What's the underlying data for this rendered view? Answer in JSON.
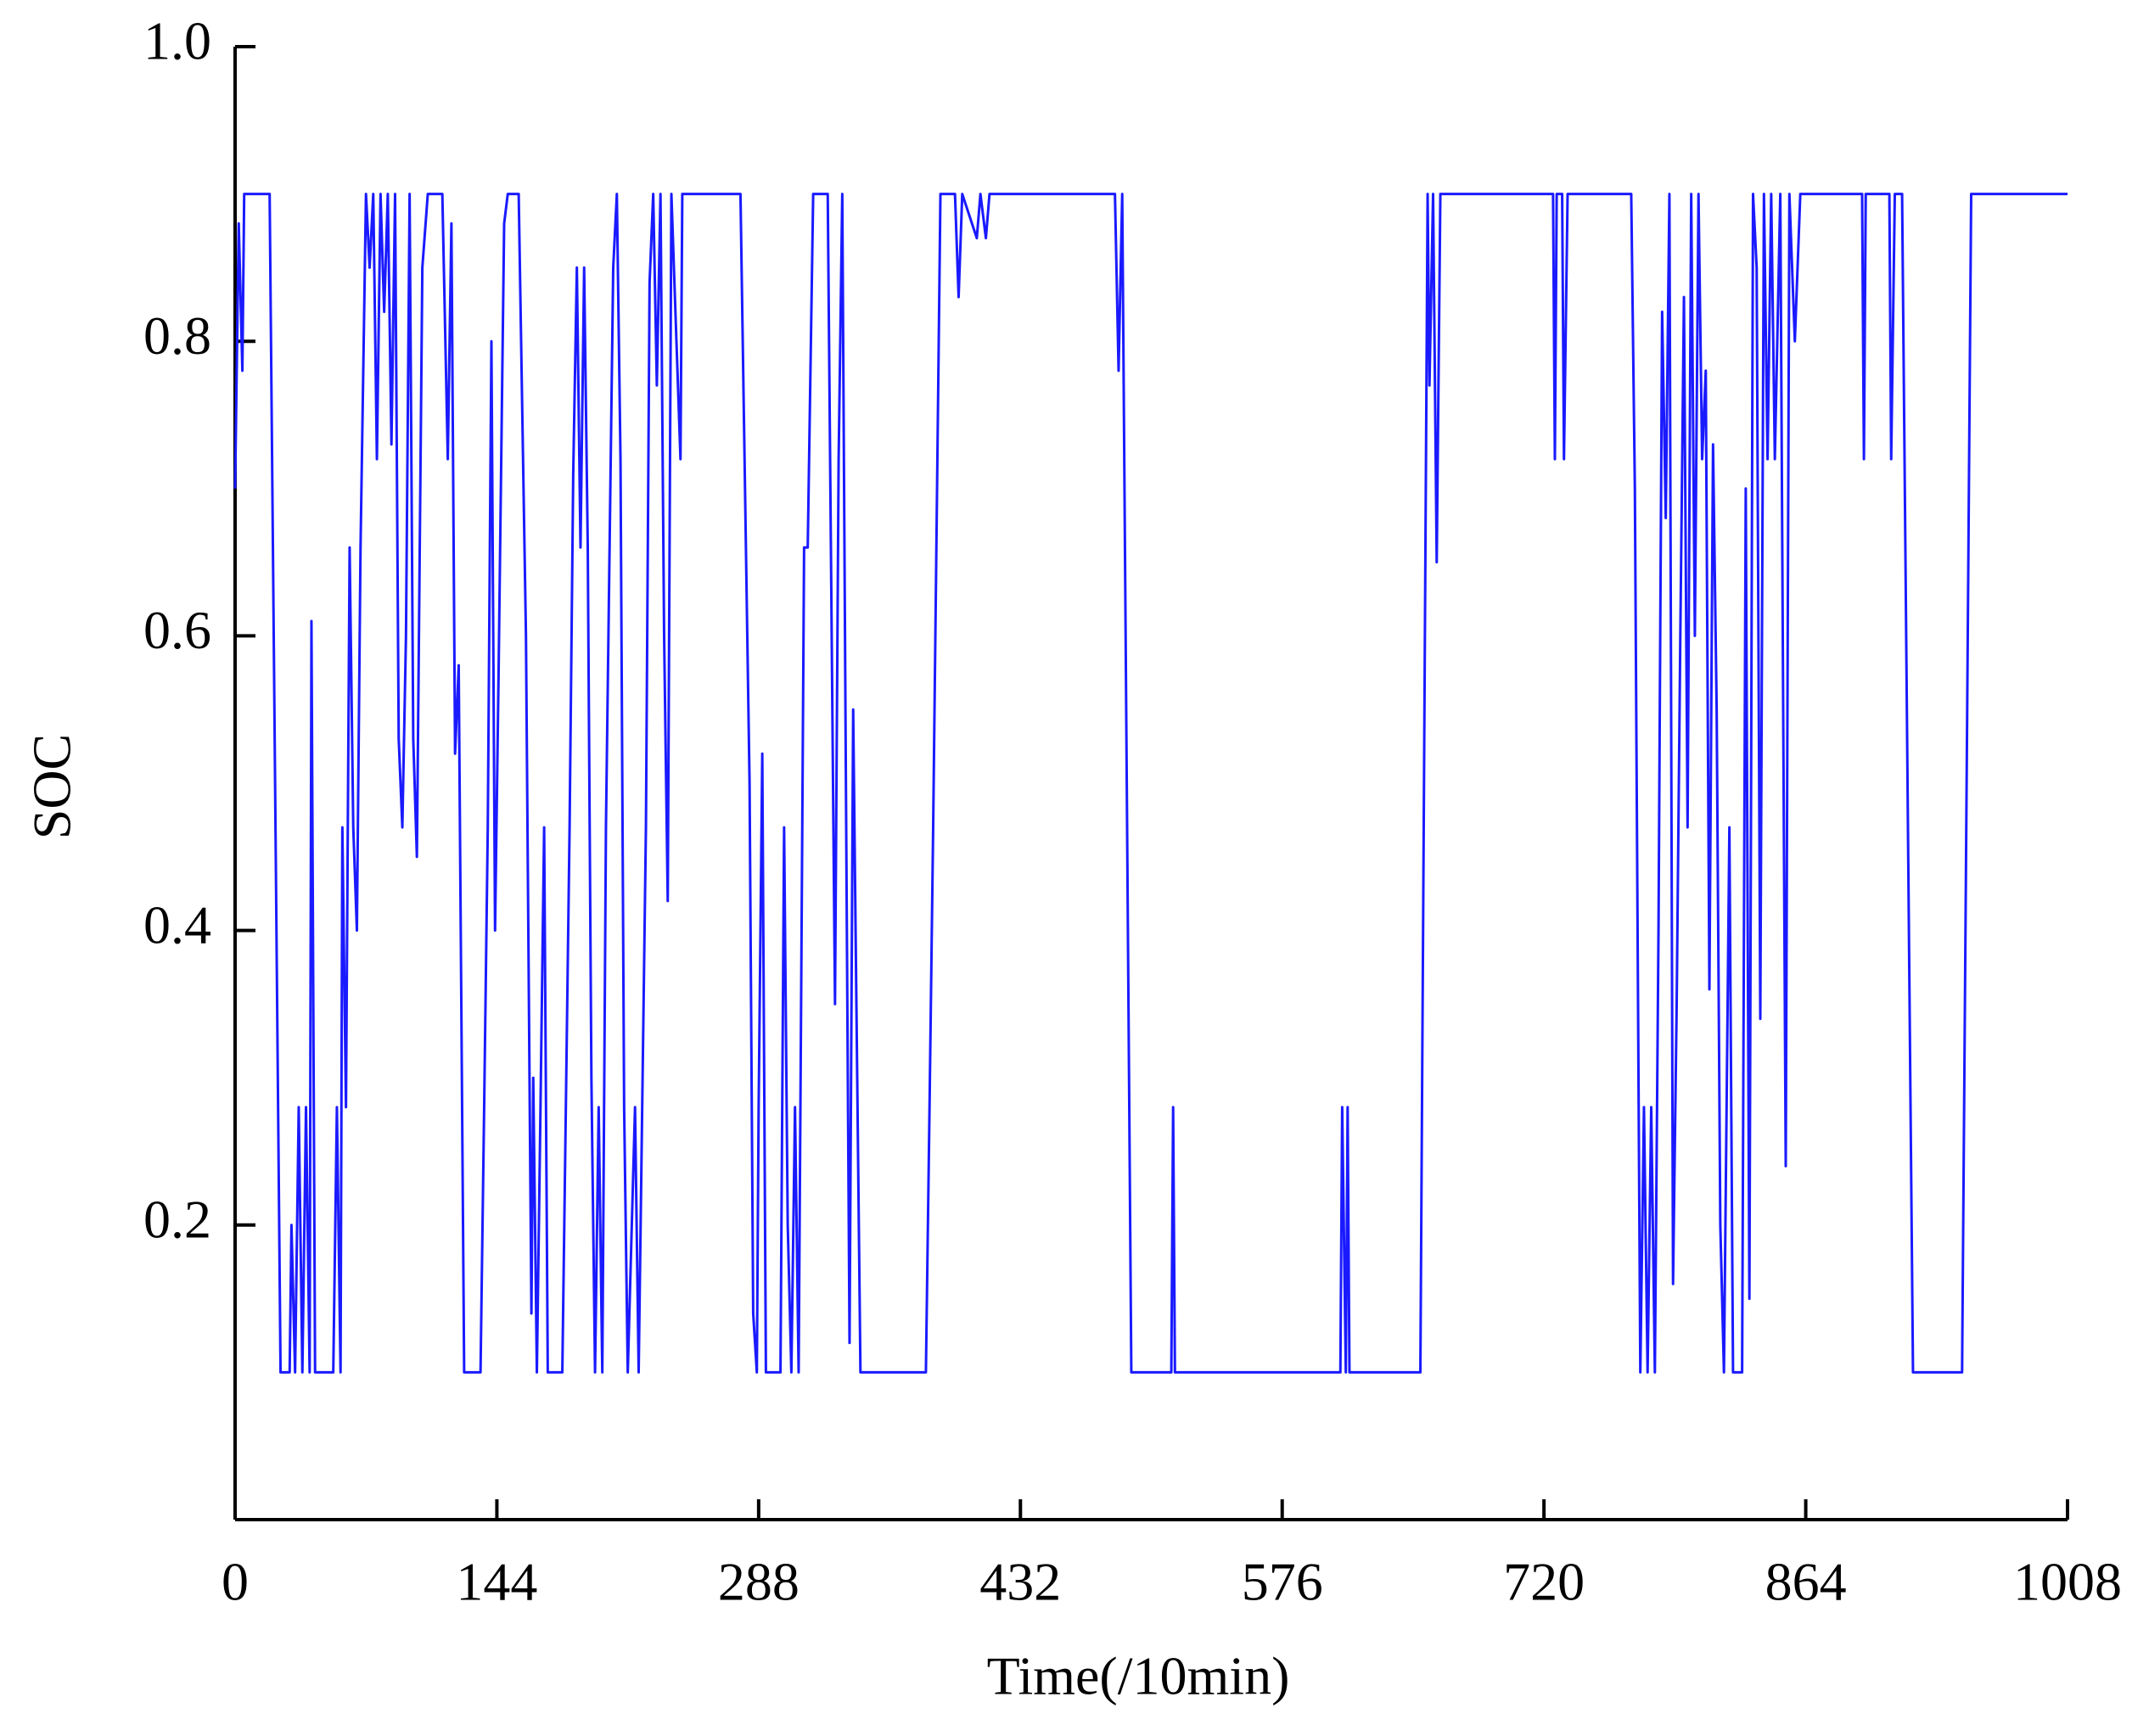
{
  "chart_data": {
    "type": "line",
    "xlabel": "Time(/10min)",
    "ylabel": "SOC",
    "color": "#1a1aff",
    "xlim": [
      0,
      1008
    ],
    "xticks": [
      0,
      144,
      288,
      432,
      576,
      720,
      864,
      1008
    ],
    "ylim": [
      0,
      1
    ],
    "yticks": [
      0.2,
      0.4,
      0.6,
      0.8,
      {
        "value": 1,
        "label": "1.0"
      }
    ],
    "x": [
      0,
      2,
      4,
      5,
      19,
      25,
      30,
      31,
      33,
      35,
      37,
      39,
      41,
      42,
      44,
      54,
      56,
      58,
      59,
      61,
      63,
      65,
      67,
      69,
      72,
      74,
      76,
      78,
      80,
      82,
      84,
      86,
      88,
      90,
      92,
      94,
      96,
      98,
      100,
      103,
      106,
      114,
      117,
      119,
      121,
      123,
      126,
      135,
      137,
      139,
      141,
      143,
      145,
      148,
      150,
      156,
      160,
      163,
      164,
      166,
      168,
      170,
      172,
      180,
      184,
      186,
      188,
      190,
      192,
      194,
      196,
      198,
      200,
      202,
      204,
      206,
      208,
      210,
      212,
      214,
      216,
      220,
      222,
      226,
      228,
      230,
      232,
      234,
      236,
      238,
      240,
      245,
      246,
      278,
      283,
      285,
      287,
      288,
      290,
      292,
      300,
      302,
      304,
      306,
      308,
      310,
      312,
      313,
      315,
      318,
      326,
      330,
      332,
      334,
      336,
      338,
      340,
      344,
      380,
      382,
      384,
      388,
      396,
      398,
      400,
      408,
      410,
      413,
      415,
      484,
      486,
      488,
      493,
      515,
      516,
      517,
      608,
      609,
      611,
      612,
      613,
      652,
      656,
      657,
      659,
      661,
      663,
      725,
      726,
      727,
      730,
      731,
      733,
      768,
      770,
      773,
      775,
      777,
      779,
      781,
      783,
      785,
      787,
      789,
      791,
      793,
      795,
      797,
      799,
      801,
      803,
      805,
      807,
      809,
      811,
      813,
      815,
      817,
      819,
      822,
      824,
      829,
      831,
      833,
      835,
      837,
      839,
      841,
      843,
      845,
      847,
      850,
      853,
      855,
      858,
      861,
      895,
      896,
      897,
      910,
      911,
      913,
      917,
      923,
      950,
      955,
      1008
    ],
    "values": [
      0.7,
      0.88,
      0.78,
      0.9,
      0.9,
      0.1,
      0.1,
      0.2,
      0.1,
      0.28,
      0.1,
      0.28,
      0.1,
      0.61,
      0.1,
      0.1,
      0.28,
      0.1,
      0.47,
      0.28,
      0.66,
      0.47,
      0.4,
      0.66,
      0.9,
      0.85,
      0.9,
      0.72,
      0.9,
      0.82,
      0.9,
      0.73,
      0.9,
      0.53,
      0.47,
      0.6,
      0.9,
      0.53,
      0.45,
      0.85,
      0.9,
      0.9,
      0.72,
      0.88,
      0.52,
      0.58,
      0.1,
      0.1,
      0.28,
      0.47,
      0.8,
      0.4,
      0.58,
      0.88,
      0.9,
      0.9,
      0.6,
      0.14,
      0.3,
      0.1,
      0.28,
      0.47,
      0.1,
      0.1,
      0.47,
      0.71,
      0.85,
      0.66,
      0.85,
      0.66,
      0.3,
      0.1,
      0.28,
      0.1,
      0.47,
      0.66,
      0.85,
      0.9,
      0.72,
      0.28,
      0.1,
      0.28,
      0.1,
      0.47,
      0.84,
      0.9,
      0.77,
      0.9,
      0.6,
      0.42,
      0.9,
      0.72,
      0.9,
      0.9,
      0.5,
      0.14,
      0.1,
      0.28,
      0.52,
      0.1,
      0.1,
      0.47,
      0.2,
      0.1,
      0.28,
      0.1,
      0.47,
      0.66,
      0.66,
      0.9,
      0.9,
      0.35,
      0.72,
      0.9,
      0.5,
      0.12,
      0.55,
      0.1,
      0.1,
      0.28,
      0.47,
      0.9,
      0.9,
      0.83,
      0.9,
      0.87,
      0.9,
      0.87,
      0.9,
      0.9,
      0.78,
      0.9,
      0.1,
      0.1,
      0.28,
      0.1,
      0.1,
      0.28,
      0.1,
      0.28,
      0.1,
      0.1,
      0.9,
      0.77,
      0.9,
      0.65,
      0.9,
      0.9,
      0.72,
      0.9,
      0.9,
      0.72,
      0.9,
      0.9,
      0.7,
      0.1,
      0.28,
      0.1,
      0.28,
      0.1,
      0.4,
      0.82,
      0.68,
      0.9,
      0.16,
      0.35,
      0.6,
      0.83,
      0.47,
      0.9,
      0.6,
      0.9,
      0.72,
      0.78,
      0.36,
      0.73,
      0.55,
      0.2,
      0.1,
      0.47,
      0.1,
      0.1,
      0.7,
      0.15,
      0.9,
      0.85,
      0.34,
      0.9,
      0.72,
      0.9,
      0.72,
      0.9,
      0.24,
      0.9,
      0.8,
      0.9,
      0.9,
      0.72,
      0.9,
      0.9,
      0.72,
      0.9,
      0.9,
      0.1,
      0.1,
      0.9,
      0.9
    ]
  }
}
